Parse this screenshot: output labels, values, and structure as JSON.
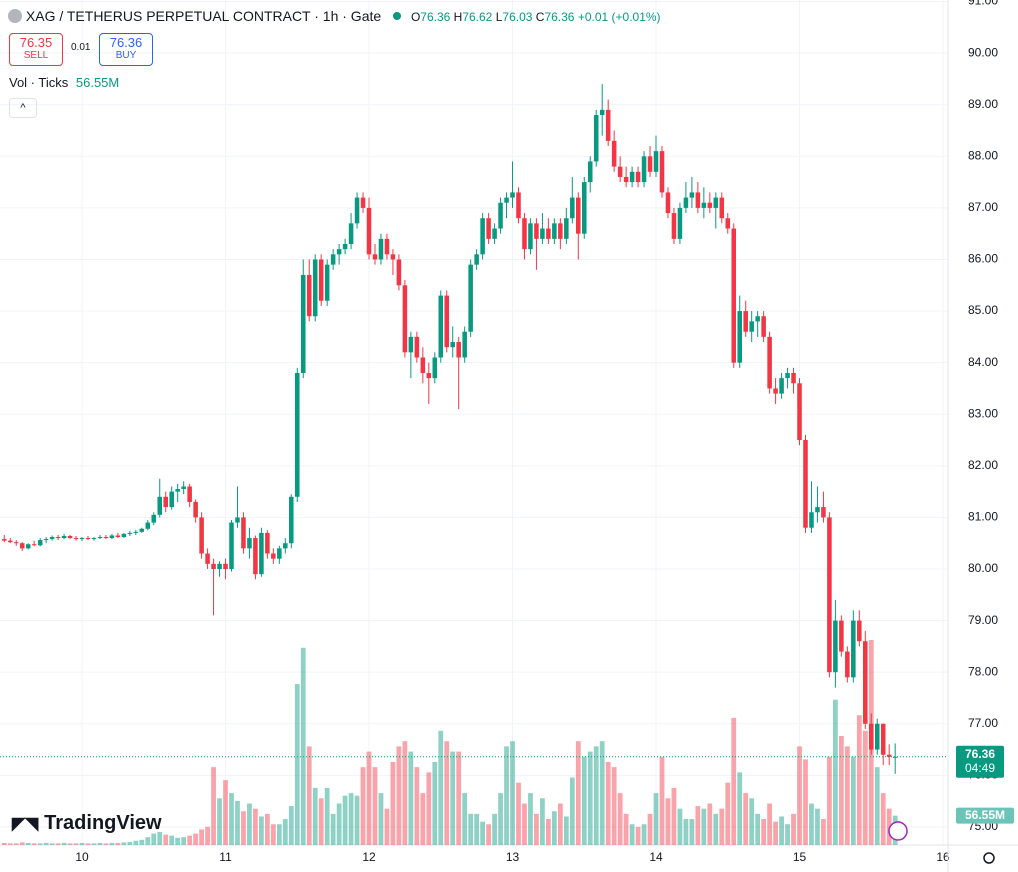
{
  "header": {
    "symbol": "XAG / TETHERUS PERPETUAL CONTRACT · 1h · Gate",
    "o_label": "O",
    "h_label": "H",
    "l_label": "L",
    "c_label": "C",
    "change": "+0.01 (+0.01%)",
    "sell_price": "76.35",
    "sell_label": "SELL",
    "spread": "0.01",
    "buy_price": "76.36",
    "buy_label": "BUY",
    "volume_title": "Vol · Ticks",
    "countdown": "04:49",
    "brand": "TradingView"
  },
  "chart_data": {
    "type": "candlestick",
    "up_color": "#089981",
    "down_color": "#f23645",
    "grid": true,
    "ylim": [
      74.65,
      91.03
    ],
    "yticks": [
      {
        "value": 75,
        "label": "75.00"
      },
      {
        "value": 76,
        "label": "76.00"
      },
      {
        "value": 77,
        "label": "77.00"
      },
      {
        "value": 78,
        "label": "78.00"
      },
      {
        "value": 79,
        "label": "79.00"
      },
      {
        "value": 80,
        "label": "80.00"
      },
      {
        "value": 81,
        "label": "81.00"
      },
      {
        "value": 82,
        "label": "82.00"
      },
      {
        "value": 83,
        "label": "83.00"
      },
      {
        "value": 84,
        "label": "84.00"
      },
      {
        "value": 85,
        "label": "85.00"
      },
      {
        "value": 86,
        "label": "86.00"
      },
      {
        "value": 87,
        "label": "87.00"
      },
      {
        "value": 88,
        "label": "88.00"
      },
      {
        "value": 89,
        "label": "89.00"
      },
      {
        "value": 90,
        "label": "90.00"
      },
      {
        "value": 91,
        "label": "91.00"
      }
    ],
    "categories": [
      null,
      null,
      null,
      null,
      null,
      null,
      null,
      null,
      null,
      null,
      null,
      null,
      null,
      "10",
      null,
      null,
      null,
      null,
      null,
      null,
      null,
      null,
      null,
      null,
      null,
      null,
      null,
      null,
      null,
      null,
      null,
      null,
      null,
      null,
      null,
      null,
      null,
      "11",
      null,
      null,
      null,
      null,
      null,
      null,
      null,
      null,
      null,
      null,
      null,
      null,
      null,
      null,
      null,
      null,
      null,
      null,
      null,
      null,
      null,
      null,
      null,
      "12",
      null,
      null,
      null,
      null,
      null,
      null,
      null,
      null,
      null,
      null,
      null,
      null,
      null,
      null,
      null,
      null,
      null,
      null,
      null,
      null,
      null,
      null,
      null,
      "13",
      null,
      null,
      null,
      null,
      null,
      null,
      null,
      null,
      null,
      null,
      null,
      null,
      null,
      null,
      null,
      null,
      null,
      null,
      null,
      null,
      null,
      null,
      null,
      "14",
      null,
      null,
      null,
      null,
      null,
      null,
      null,
      null,
      null,
      null,
      null,
      null,
      null,
      null,
      null,
      null,
      null,
      null,
      null,
      null,
      null,
      null,
      null,
      "15",
      null,
      null,
      null,
      null,
      null,
      null,
      null,
      null,
      null,
      null,
      null,
      null,
      null,
      null,
      null,
      null,
      null,
      null,
      null,
      null,
      null,
      null,
      null,
      "16"
    ],
    "ohlc": [
      [
        80.58,
        80.66,
        80.52,
        80.55
      ],
      [
        80.55,
        80.6,
        80.5,
        80.52
      ],
      [
        80.52,
        80.56,
        80.45,
        80.5
      ],
      [
        80.5,
        80.52,
        80.35,
        80.4
      ],
      [
        80.4,
        80.5,
        80.38,
        80.48
      ],
      [
        80.48,
        80.55,
        80.44,
        80.46
      ],
      [
        80.46,
        80.6,
        80.44,
        80.56
      ],
      [
        80.56,
        80.62,
        80.5,
        80.58
      ],
      [
        80.58,
        80.65,
        80.55,
        80.62
      ],
      [
        80.62,
        80.66,
        80.56,
        80.6
      ],
      [
        80.6,
        80.68,
        80.58,
        80.64
      ],
      [
        80.64,
        80.66,
        80.58,
        80.6
      ],
      [
        80.6,
        80.64,
        80.55,
        80.58
      ],
      [
        80.58,
        80.62,
        80.54,
        80.6
      ],
      [
        80.6,
        80.64,
        80.56,
        80.58
      ],
      [
        80.58,
        80.62,
        80.55,
        80.6
      ],
      [
        80.6,
        80.66,
        80.58,
        80.62
      ],
      [
        80.62,
        80.66,
        80.58,
        80.6
      ],
      [
        80.6,
        80.68,
        80.58,
        80.65
      ],
      [
        80.65,
        80.7,
        80.6,
        80.62
      ],
      [
        80.62,
        80.7,
        80.6,
        80.68
      ],
      [
        80.68,
        80.74,
        80.64,
        80.7
      ],
      [
        80.7,
        80.76,
        80.66,
        80.72
      ],
      [
        80.72,
        80.8,
        80.7,
        80.78
      ],
      [
        80.78,
        80.95,
        80.75,
        80.9
      ],
      [
        80.9,
        81.1,
        80.85,
        81.05
      ],
      [
        81.05,
        81.75,
        81.0,
        81.4
      ],
      [
        81.4,
        81.5,
        81.1,
        81.2
      ],
      [
        81.2,
        81.6,
        81.15,
        81.5
      ],
      [
        81.5,
        81.65,
        81.3,
        81.55
      ],
      [
        81.55,
        81.7,
        81.45,
        81.6
      ],
      [
        81.6,
        81.65,
        81.2,
        81.3
      ],
      [
        81.3,
        81.35,
        80.9,
        81.0
      ],
      [
        81.0,
        81.1,
        80.2,
        80.3
      ],
      [
        80.3,
        80.4,
        80.0,
        80.1
      ],
      [
        80.1,
        80.2,
        79.1,
        80.0
      ],
      [
        80.0,
        80.15,
        79.85,
        80.1
      ],
      [
        80.1,
        80.2,
        79.8,
        80.0
      ],
      [
        80.0,
        80.95,
        79.95,
        80.9
      ],
      [
        80.9,
        81.6,
        80.8,
        81.0
      ],
      [
        81.0,
        81.1,
        80.3,
        80.4
      ],
      [
        80.4,
        80.8,
        80.2,
        80.6
      ],
      [
        80.6,
        80.65,
        79.8,
        79.9
      ],
      [
        79.9,
        80.8,
        79.85,
        80.7
      ],
      [
        80.7,
        80.75,
        80.2,
        80.3
      ],
      [
        80.3,
        80.4,
        80.1,
        80.2
      ],
      [
        80.2,
        80.45,
        80.1,
        80.4
      ],
      [
        80.4,
        80.6,
        80.3,
        80.5
      ],
      [
        80.5,
        81.45,
        80.4,
        81.4
      ],
      [
        81.4,
        83.9,
        81.3,
        83.8
      ],
      [
        83.8,
        86.0,
        83.7,
        85.7
      ],
      [
        85.7,
        86.0,
        84.8,
        84.9
      ],
      [
        84.9,
        86.1,
        84.8,
        86.0
      ],
      [
        86.0,
        86.1,
        85.1,
        85.2
      ],
      [
        85.2,
        86.0,
        85.1,
        85.9
      ],
      [
        85.9,
        86.2,
        85.8,
        86.1
      ],
      [
        86.1,
        86.3,
        85.9,
        86.2
      ],
      [
        86.2,
        86.4,
        86.1,
        86.3
      ],
      [
        86.3,
        86.9,
        86.2,
        86.7
      ],
      [
        86.7,
        87.3,
        86.6,
        87.2
      ],
      [
        87.2,
        87.3,
        86.9,
        87.0
      ],
      [
        87.0,
        87.2,
        86.0,
        86.1
      ],
      [
        86.1,
        86.3,
        85.9,
        86.0
      ],
      [
        86.0,
        86.5,
        85.9,
        86.4
      ],
      [
        86.4,
        86.5,
        86.0,
        86.1
      ],
      [
        86.1,
        86.2,
        85.7,
        86.0
      ],
      [
        86.0,
        86.1,
        85.4,
        85.5
      ],
      [
        85.5,
        85.6,
        84.1,
        84.2
      ],
      [
        84.2,
        84.6,
        83.7,
        84.5
      ],
      [
        84.5,
        84.6,
        84.0,
        84.1
      ],
      [
        84.1,
        84.3,
        83.6,
        83.8
      ],
      [
        83.8,
        84.0,
        83.2,
        83.7
      ],
      [
        83.7,
        84.2,
        83.6,
        84.1
      ],
      [
        84.1,
        85.4,
        84.0,
        85.3
      ],
      [
        85.3,
        85.4,
        84.2,
        84.3
      ],
      [
        84.3,
        84.7,
        84.1,
        84.4
      ],
      [
        84.4,
        84.5,
        83.1,
        84.1
      ],
      [
        84.1,
        84.7,
        84.0,
        84.6
      ],
      [
        84.6,
        86.0,
        84.5,
        85.9
      ],
      [
        85.9,
        86.2,
        85.8,
        86.1
      ],
      [
        86.1,
        86.9,
        86.0,
        86.8
      ],
      [
        86.8,
        86.9,
        86.3,
        86.4
      ],
      [
        86.4,
        86.7,
        86.3,
        86.6
      ],
      [
        86.6,
        87.2,
        86.5,
        87.1
      ],
      [
        87.1,
        87.3,
        86.8,
        87.2
      ],
      [
        87.2,
        87.9,
        87.0,
        87.3
      ],
      [
        87.3,
        87.4,
        86.7,
        86.8
      ],
      [
        86.8,
        86.9,
        86.0,
        86.2
      ],
      [
        86.2,
        86.8,
        86.1,
        86.7
      ],
      [
        86.7,
        86.8,
        85.8,
        86.4
      ],
      [
        86.4,
        86.9,
        86.3,
        86.6
      ],
      [
        86.6,
        86.8,
        86.3,
        86.4
      ],
      [
        86.4,
        86.8,
        86.3,
        86.7
      ],
      [
        86.7,
        86.8,
        86.2,
        86.4
      ],
      [
        86.4,
        87.0,
        86.3,
        86.8
      ],
      [
        86.8,
        87.6,
        86.7,
        87.2
      ],
      [
        87.2,
        87.3,
        86.0,
        86.5
      ],
      [
        86.5,
        87.6,
        86.4,
        87.5
      ],
      [
        87.5,
        88.0,
        87.3,
        87.9
      ],
      [
        87.9,
        88.9,
        87.8,
        88.8
      ],
      [
        88.8,
        89.4,
        88.4,
        88.9
      ],
      [
        88.9,
        89.1,
        88.2,
        88.3
      ],
      [
        88.3,
        88.5,
        87.7,
        87.8
      ],
      [
        87.8,
        88.0,
        87.5,
        87.6
      ],
      [
        87.6,
        87.8,
        87.4,
        87.5
      ],
      [
        87.5,
        87.8,
        87.4,
        87.7
      ],
      [
        87.7,
        87.8,
        87.4,
        87.5
      ],
      [
        87.5,
        88.1,
        87.4,
        88.0
      ],
      [
        88.0,
        88.2,
        87.6,
        87.7
      ],
      [
        87.7,
        88.4,
        87.6,
        88.1
      ],
      [
        88.1,
        88.2,
        87.2,
        87.3
      ],
      [
        87.3,
        87.4,
        86.8,
        86.9
      ],
      [
        86.9,
        87.0,
        86.3,
        86.4
      ],
      [
        86.4,
        87.1,
        86.3,
        87.0
      ],
      [
        87.0,
        87.5,
        86.9,
        87.2
      ],
      [
        87.2,
        87.6,
        87.0,
        87.3
      ],
      [
        87.3,
        87.5,
        86.9,
        87.0
      ],
      [
        87.0,
        87.4,
        86.8,
        87.1
      ],
      [
        87.1,
        87.3,
        86.9,
        87.0
      ],
      [
        87.0,
        87.3,
        86.6,
        87.2
      ],
      [
        87.2,
        87.3,
        86.7,
        86.8
      ],
      [
        86.8,
        86.9,
        86.5,
        86.6
      ],
      [
        86.6,
        86.7,
        83.9,
        84.0
      ],
      [
        84.0,
        85.3,
        83.9,
        85.0
      ],
      [
        85.0,
        85.2,
        84.5,
        84.6
      ],
      [
        84.6,
        85.0,
        84.4,
        84.8
      ],
      [
        84.8,
        85.0,
        84.5,
        84.9
      ],
      [
        84.9,
        85.0,
        84.4,
        84.5
      ],
      [
        84.5,
        84.6,
        83.4,
        83.5
      ],
      [
        83.5,
        83.7,
        83.2,
        83.4
      ],
      [
        83.4,
        83.8,
        83.3,
        83.7
      ],
      [
        83.7,
        83.9,
        83.5,
        83.8
      ],
      [
        83.8,
        83.9,
        83.4,
        83.6
      ],
      [
        83.6,
        83.7,
        82.4,
        82.5
      ],
      [
        82.5,
        82.6,
        80.7,
        80.8
      ],
      [
        80.8,
        81.7,
        80.7,
        81.1
      ],
      [
        81.1,
        81.6,
        80.9,
        81.2
      ],
      [
        81.2,
        81.5,
        80.9,
        81.0
      ],
      [
        81.0,
        81.1,
        77.9,
        78.0
      ],
      [
        78.0,
        79.4,
        77.7,
        79.0
      ],
      [
        79.0,
        79.1,
        78.3,
        78.4
      ],
      [
        78.4,
        78.5,
        77.8,
        77.9
      ],
      [
        77.9,
        79.2,
        77.8,
        79.0
      ],
      [
        79.0,
        79.2,
        78.5,
        78.6
      ],
      [
        78.6,
        78.8,
        76.9,
        77.0
      ],
      [
        77.0,
        77.2,
        76.4,
        76.5
      ],
      [
        76.5,
        77.1,
        76.4,
        77.0
      ],
      [
        77.0,
        77.0,
        76.2,
        76.4
      ],
      [
        76.4,
        76.6,
        76.2,
        76.36
      ],
      [
        76.36,
        76.62,
        76.03,
        76.36
      ],
      null,
      null,
      null,
      null,
      null,
      null,
      null,
      null
    ],
    "volumes": [
      4,
      3,
      3,
      5,
      4,
      3,
      3,
      4,
      3,
      3,
      4,
      3,
      3,
      4,
      3,
      3,
      4,
      3,
      4,
      4,
      5,
      6,
      8,
      10,
      15,
      22,
      25,
      20,
      18,
      14,
      15,
      18,
      22,
      30,
      35,
      150,
      90,
      125,
      100,
      85,
      65,
      80,
      70,
      55,
      60,
      40,
      40,
      50,
      75,
      310,
      380,
      190,
      110,
      90,
      110,
      60,
      80,
      95,
      100,
      95,
      150,
      180,
      150,
      100,
      70,
      160,
      190,
      200,
      180,
      150,
      100,
      140,
      160,
      220,
      200,
      180,
      180,
      100,
      60,
      60,
      45,
      40,
      60,
      100,
      190,
      200,
      120,
      80,
      100,
      60,
      90,
      50,
      65,
      80,
      55,
      130,
      200,
      170,
      180,
      190,
      200,
      160,
      150,
      100,
      60,
      40,
      35,
      40,
      60,
      100,
      170,
      90,
      110,
      70,
      50,
      50,
      75,
      70,
      80,
      60,
      70,
      120,
      245,
      140,
      100,
      90,
      60,
      50,
      80,
      45,
      55,
      40,
      60,
      190,
      165,
      80,
      70,
      50,
      170,
      280,
      210,
      190,
      170,
      250,
      220,
      395,
      150,
      100,
      70,
      56.55,
      null,
      null,
      null,
      null,
      null,
      null,
      null,
      null
    ],
    "volume_last_label": "56.55M"
  }
}
